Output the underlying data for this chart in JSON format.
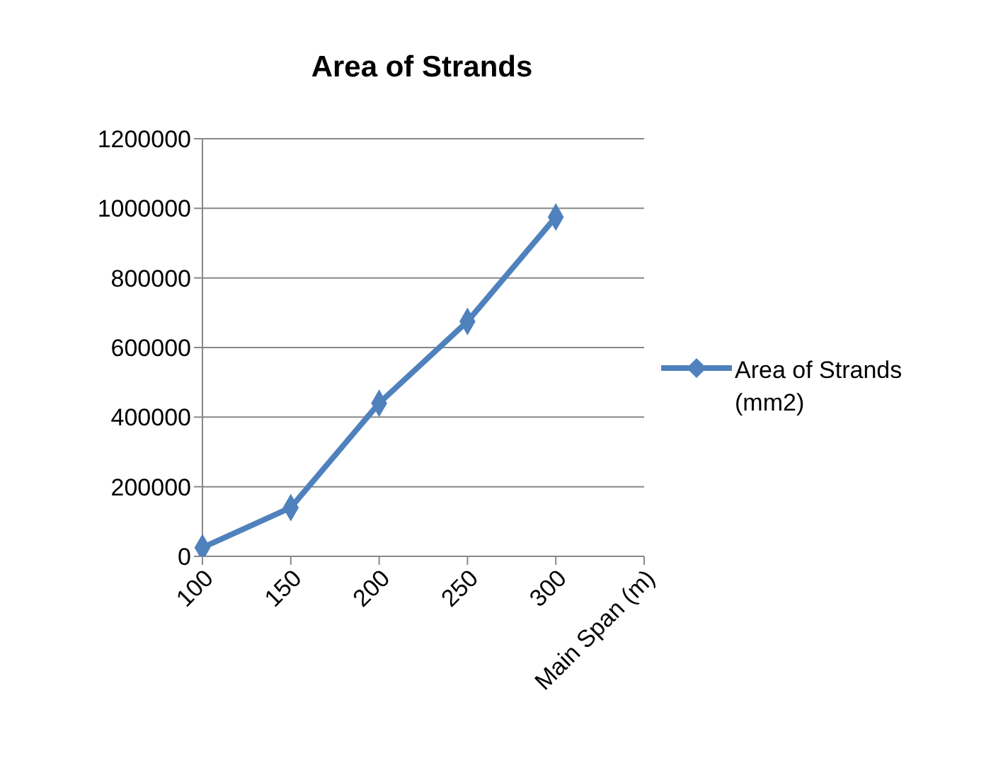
{
  "chart_data": {
    "type": "line",
    "title": "Area of Strands",
    "categories": [
      "100",
      "150",
      "200",
      "250",
      "300",
      "Main Span (m)"
    ],
    "series": [
      {
        "name": "Area of Strands (mm2)",
        "color": "#4f81bd",
        "values": [
          25000,
          140000,
          440000,
          675000,
          975000,
          null
        ]
      }
    ],
    "ylim": [
      0,
      1200000
    ],
    "yticks": [
      0,
      200000,
      400000,
      600000,
      800000,
      1000000,
      1200000
    ],
    "grid": "y",
    "legend": "right",
    "marker": "diamond",
    "line_style": "solid"
  }
}
